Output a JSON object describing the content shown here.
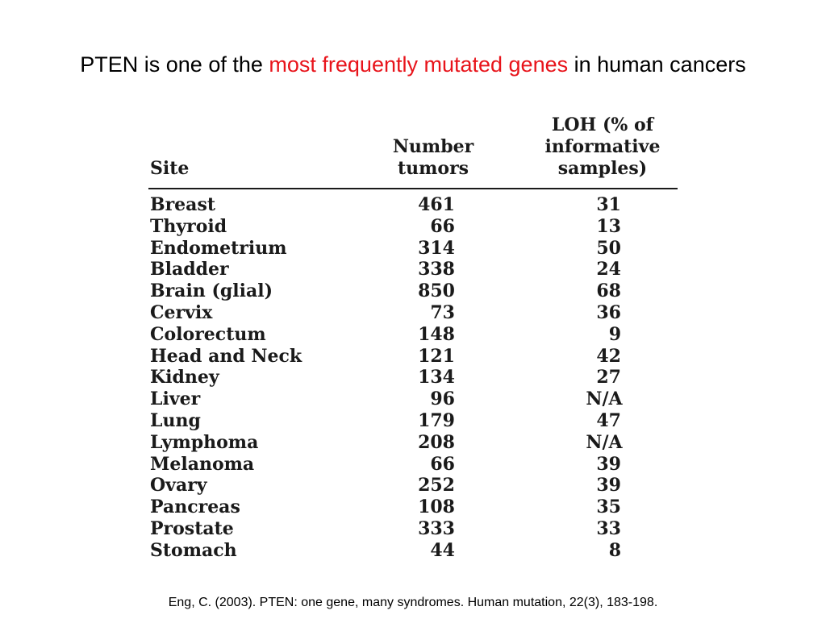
{
  "title": {
    "prefix": "PTEN is one of the ",
    "highlight": "most frequently mutated genes",
    "suffix": " in human cancers",
    "highlight_color": "#e8141b"
  },
  "table": {
    "headers": {
      "site": "Site",
      "number_line1": "Number",
      "number_line2": "tumors",
      "loh_line1": "LOH (% of",
      "loh_line2": "informative",
      "loh_line3": "samples)"
    },
    "rows": [
      {
        "site": "Breast",
        "number": "461",
        "loh": "31"
      },
      {
        "site": "Thyroid",
        "number": "66",
        "loh": "13"
      },
      {
        "site": "Endometrium",
        "number": "314",
        "loh": "50"
      },
      {
        "site": "Bladder",
        "number": "338",
        "loh": "24"
      },
      {
        "site": "Brain (glial)",
        "number": "850",
        "loh": "68"
      },
      {
        "site": "Cervix",
        "number": "73",
        "loh": "36"
      },
      {
        "site": "Colorectum",
        "number": "148",
        "loh": "9"
      },
      {
        "site": "Head and Neck",
        "number": "121",
        "loh": "42"
      },
      {
        "site": "Kidney",
        "number": "134",
        "loh": "27"
      },
      {
        "site": "Liver",
        "number": "96",
        "loh": "N/A"
      },
      {
        "site": "Lung",
        "number": "179",
        "loh": "47"
      },
      {
        "site": "Lymphoma",
        "number": "208",
        "loh": "N/A"
      },
      {
        "site": "Melanoma",
        "number": "66",
        "loh": "39"
      },
      {
        "site": "Ovary",
        "number": "252",
        "loh": "39"
      },
      {
        "site": "Pancreas",
        "number": "108",
        "loh": "35"
      },
      {
        "site": "Prostate",
        "number": "333",
        "loh": "33"
      },
      {
        "site": "Stomach",
        "number": "44",
        "loh": "8"
      }
    ]
  },
  "citation": "Eng, C. (2003). PTEN: one gene, many syndromes. Human mutation, 22(3), 183-198."
}
